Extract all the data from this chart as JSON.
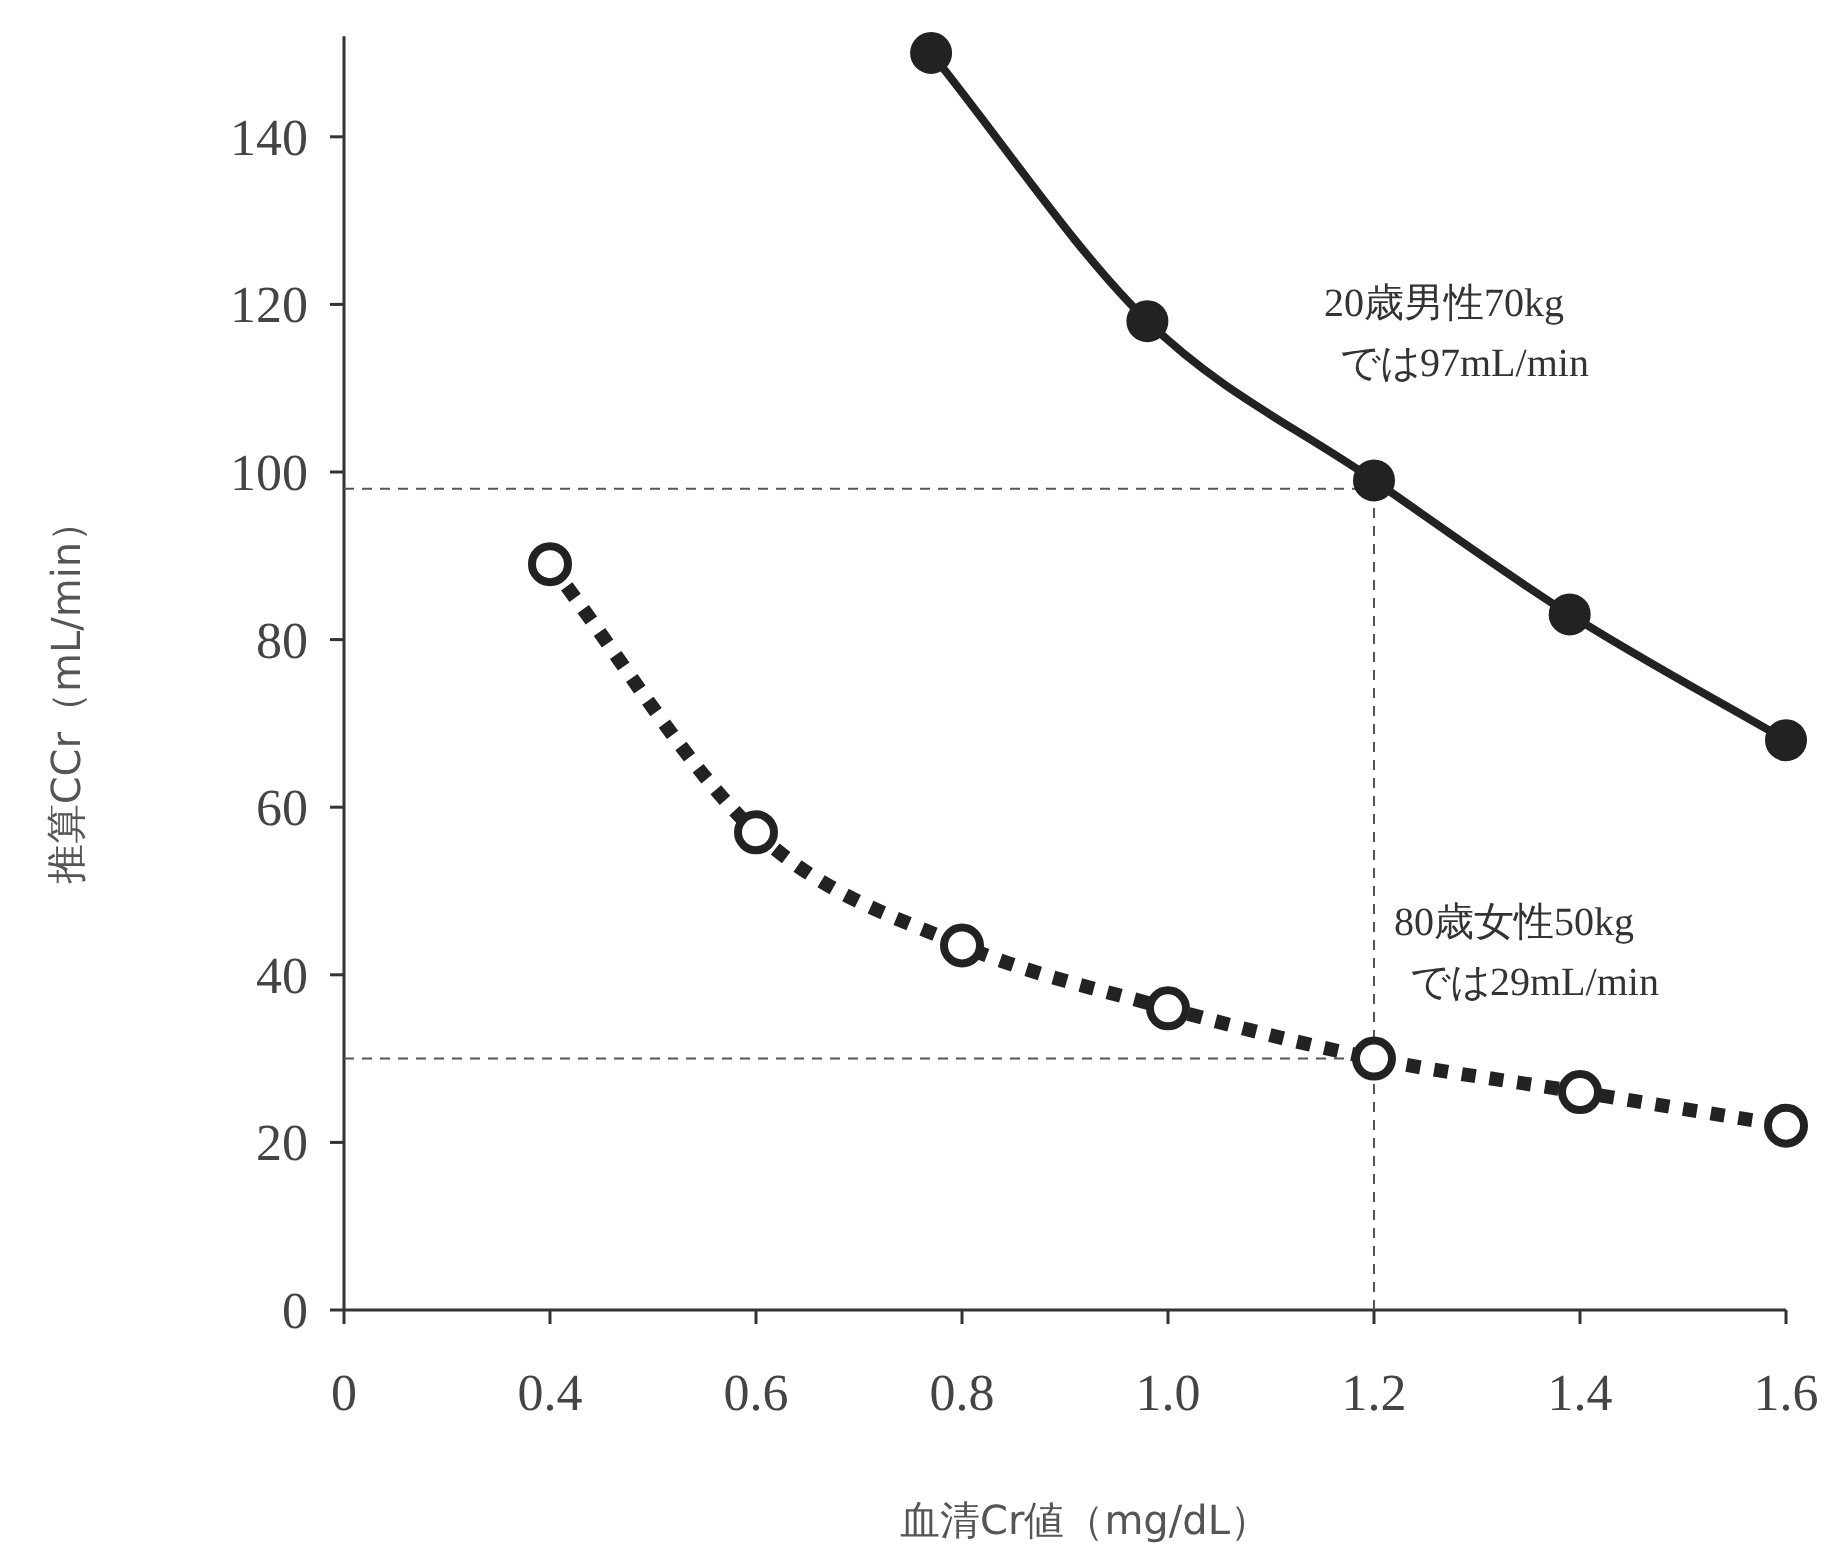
{
  "chart_data": {
    "type": "line",
    "xlabel": "血清Cr値（mg/dL）",
    "ylabel": "推算CCr（mL/min）",
    "xlim": [
      0.2,
      1.6
    ],
    "xticks": [
      {
        "value": 0.2,
        "label": "0"
      },
      0.4,
      0.6,
      0.8,
      {
        "value": 1,
        "label": "1.0"
      },
      1.2,
      1.4,
      1.6
    ],
    "ylim": [
      0,
      152
    ],
    "yticks": [
      0,
      20,
      40,
      60,
      80,
      100,
      120,
      140
    ],
    "series": [
      {
        "color": "#222222",
        "x": [
          0.77,
          0.98,
          1.2,
          1.39,
          1.6
        ],
        "values": [
          150,
          118,
          99,
          83,
          68
        ],
        "marker": "circle",
        "line_style": "solid"
      },
      {
        "color": "#222222",
        "x": [
          0.4,
          0.6,
          0.8,
          1.0,
          1.2,
          1.4,
          1.6
        ],
        "values": [
          89,
          57,
          43.5,
          36,
          30,
          26,
          22
        ],
        "marker": "circle",
        "line_style": "dotted"
      }
    ],
    "ref_lines": [
      {
        "axis": "y",
        "value": 98,
        "line_style": "dashed",
        "color": "#555555"
      },
      {
        "axis": "y",
        "value": 30,
        "line_style": "dashed",
        "color": "#555555"
      },
      {
        "axis": "x",
        "value": 1.2,
        "line_style": "dashed",
        "color": "#555555"
      }
    ],
    "annotations": [
      {
        "text": "20歳男性70kgでは97mL/min",
        "x": 1.2,
        "y": 99
      },
      {
        "text": "80歳女性50kgでは29mL/min",
        "x": 1.2,
        "y": 30
      }
    ]
  }
}
